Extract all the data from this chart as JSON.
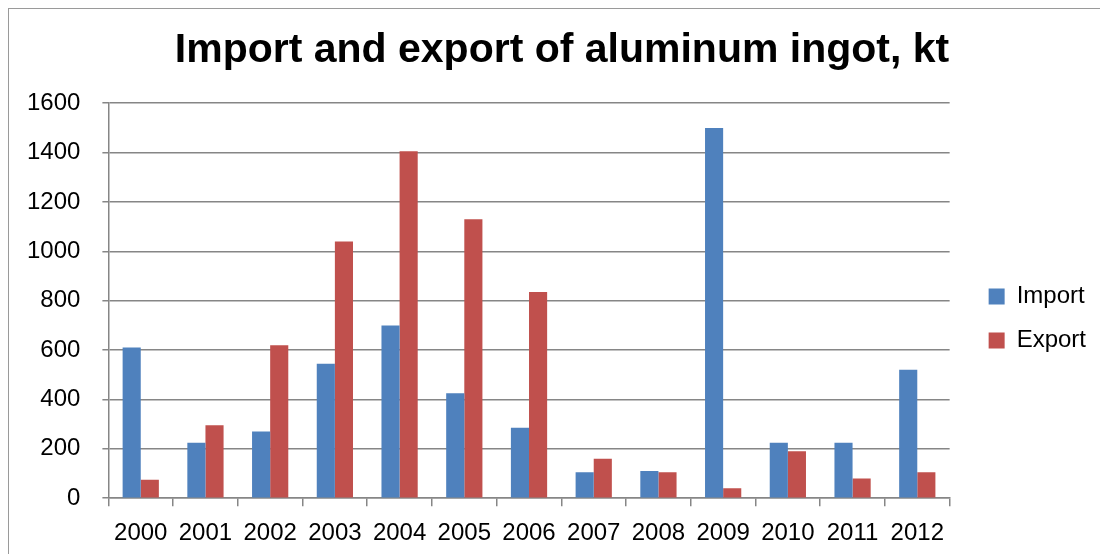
{
  "chart_data": {
    "type": "bar",
    "title": "Import and export of aluminum ingot, kt",
    "categories": [
      "2000",
      "2001",
      "2002",
      "2003",
      "2004",
      "2005",
      "2006",
      "2007",
      "2008",
      "2009",
      "2010",
      "2011",
      "2012"
    ],
    "series": [
      {
        "name": "Import",
        "color": "#4f81bd",
        "values": [
          610,
          225,
          270,
          545,
          700,
          425,
          285,
          105,
          110,
          1500,
          225,
          225,
          520
        ]
      },
      {
        "name": "Export",
        "color": "#c0504d",
        "values": [
          75,
          295,
          620,
          1040,
          1405,
          1130,
          835,
          160,
          105,
          40,
          190,
          80,
          105
        ]
      }
    ],
    "ylim": [
      0,
      1600
    ],
    "yticks": [
      0,
      200,
      400,
      600,
      800,
      1000,
      1200,
      1400,
      1600
    ],
    "grid": "y",
    "legend": "right"
  }
}
